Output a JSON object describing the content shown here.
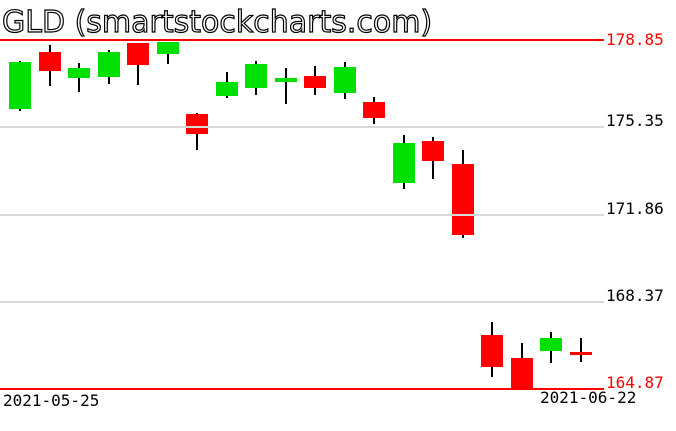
{
  "title": "GLD (smartstockcharts.com)",
  "colors": {
    "background": "#ffffff",
    "up": "#00e000",
    "down": "#ff0000",
    "wick": "#000000",
    "grid": "#d8d8d8",
    "bound_line": "#ff0000",
    "label_black": "#000000",
    "label_red": "#ff0000"
  },
  "y_axis": {
    "ticks": [
      {
        "label": "178.85",
        "price": 178.85,
        "color": "#ff0000",
        "line": "red"
      },
      {
        "label": "175.35",
        "price": 175.35,
        "color": "#000000",
        "line": "gray"
      },
      {
        "label": "171.86",
        "price": 171.86,
        "color": "#000000",
        "line": "gray"
      },
      {
        "label": "168.37",
        "price": 168.37,
        "color": "#000000",
        "line": "gray"
      },
      {
        "label": "164.87",
        "price": 164.87,
        "color": "#ff0000",
        "line": "red"
      }
    ]
  },
  "x_axis": {
    "labels": [
      {
        "text": "2021-05-25",
        "position": "start"
      },
      {
        "text": "2021-06-22",
        "position": "end"
      }
    ]
  },
  "chart_data": {
    "type": "candlestick",
    "title": "GLD (smartstockcharts.com)",
    "symbol": "GLD",
    "ylim": [
      164.87,
      178.85
    ],
    "y_ticks": [
      178.85,
      175.35,
      171.86,
      168.37,
      164.87
    ],
    "grid": "horizontal-gray, red bound lines at 178.85 and 164.87",
    "legend": "none",
    "x_range_labels": [
      "2021-05-25",
      "2021-06-22"
    ],
    "candles": [
      {
        "o": 176.09,
        "h": 178.01,
        "l": 176.01,
        "c": 177.97
      },
      {
        "o": 178.37,
        "h": 178.65,
        "l": 177.01,
        "c": 177.61
      },
      {
        "o": 177.33,
        "h": 177.93,
        "l": 176.77,
        "c": 177.73
      },
      {
        "o": 177.37,
        "h": 178.45,
        "l": 177.09,
        "c": 178.37
      },
      {
        "o": 178.73,
        "h": 178.73,
        "l": 177.05,
        "c": 177.85
      },
      {
        "o": 178.29,
        "h": 178.77,
        "l": 177.89,
        "c": 178.77
      },
      {
        "o": 175.89,
        "h": 175.93,
        "l": 174.44,
        "c": 175.08
      },
      {
        "o": 176.61,
        "h": 177.57,
        "l": 176.53,
        "c": 177.17
      },
      {
        "o": 176.93,
        "h": 178.01,
        "l": 176.65,
        "c": 177.89
      },
      {
        "o": 177.17,
        "h": 177.73,
        "l": 176.29,
        "c": 177.33
      },
      {
        "o": 177.41,
        "h": 177.81,
        "l": 176.65,
        "c": 176.93
      },
      {
        "o": 176.73,
        "h": 177.97,
        "l": 176.49,
        "c": 177.77
      },
      {
        "o": 176.37,
        "h": 176.57,
        "l": 175.49,
        "c": 175.73
      },
      {
        "o": 173.12,
        "h": 175.04,
        "l": 172.88,
        "c": 174.72
      },
      {
        "o": 174.8,
        "h": 174.96,
        "l": 173.28,
        "c": 174.0
      },
      {
        "o": 173.88,
        "h": 174.44,
        "l": 170.92,
        "c": 171.04
      },
      {
        "o": 167.03,
        "h": 167.55,
        "l": 165.35,
        "c": 165.75
      },
      {
        "o": 166.11,
        "h": 166.71,
        "l": 164.87,
        "c": 164.91
      },
      {
        "o": 166.39,
        "h": 167.15,
        "l": 165.91,
        "c": 166.91
      },
      {
        "o": 166.35,
        "h": 166.91,
        "l": 165.95,
        "c": 166.31
      }
    ]
  }
}
